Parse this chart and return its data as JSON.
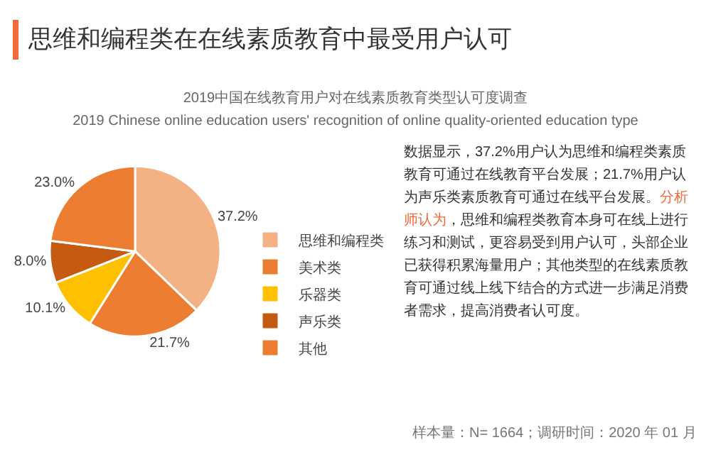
{
  "chart_data": {
    "type": "pie",
    "title": "思维和编程类在在线素质教育中最受用户认可",
    "subtitle": "2019中国在线教育用户对在线素质教育类型认可度调查\n2019 Chinese online education users' recognition of online quality-oriented education type",
    "categories": [
      "思维和编程类",
      "美术类",
      "乐器类",
      "声乐类",
      "其他"
    ],
    "values": [
      37.2,
      21.7,
      10.1,
      8.0,
      23.0
    ],
    "colors": [
      "#f4b183",
      "#ed7d31",
      "#ffc000",
      "#c55a11",
      "#ed7d31"
    ],
    "value_labels": [
      "37.2%",
      "21.7%",
      "10.1%",
      "8.0%",
      "23.0%"
    ],
    "legend": "right",
    "annotations": [
      "数据显示，37.2%用户认为思维和编程类素质教育可通过在线教育平台发展；21.7%用户认为声乐类素质教育可通过在线平台发展。",
      "分析师认为",
      "，思维和编程类教育本身可在线上进行练习和测试，更容易受到用户认可，头部企业已获得积累海量用户；其他类型的在线素质教育可通过线上线下结合的方式进一步满足消费者需求，提高消费者认可度。",
      "样本量：N= 1664；调研时间：2020 年 01 月"
    ]
  }
}
